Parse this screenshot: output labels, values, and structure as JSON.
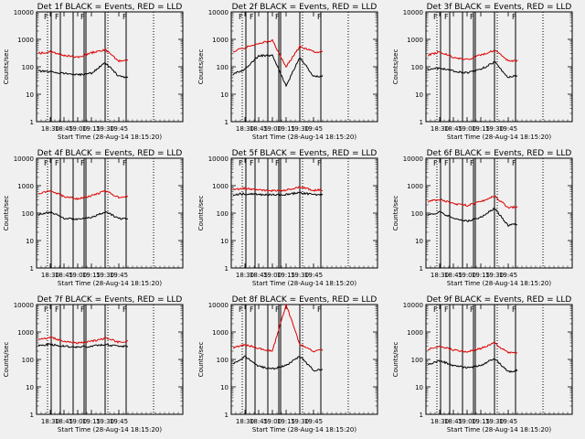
{
  "figure": {
    "background": "#f0f0f0",
    "event_color": "#000000",
    "lld_color": "#dd0000",
    "start_time_label": "Start Time (28-Aug-14 18:15:20)",
    "ylabel": "Counts/sec",
    "mark_label": "F"
  },
  "chart_data": [
    {
      "type": "line",
      "title": "Det 1f BLACK = Events, RED = LLD",
      "ylabel": "Counts/sec",
      "xlabel": "Start Time (28-Aug-14 18:15:20)",
      "yscale": "log",
      "ylim": [
        1,
        10000
      ],
      "xlim": [
        "18:15",
        "20:55"
      ],
      "x_ticks": [
        "18:30",
        "18:45",
        "19:00",
        "19:15",
        "19:30",
        "19:45"
      ],
      "y_ticks": [
        "1",
        "10",
        "100",
        "1000",
        "10000"
      ],
      "x": [
        "18:15",
        "18:30",
        "18:45",
        "19:00",
        "19:15",
        "19:30",
        "19:45",
        "19:55"
      ],
      "series": [
        {
          "name": "Events",
          "color": "#000000",
          "values": [
            70,
            65,
            58,
            50,
            58,
            140,
            45,
            40
          ]
        },
        {
          "name": "LLD",
          "color": "#dd0000",
          "values": [
            300,
            350,
            260,
            220,
            320,
            420,
            160,
            170
          ]
        }
      ]
    },
    {
      "type": "line",
      "title": "Det 2f BLACK = Events, RED = LLD",
      "ylabel": "Counts/sec",
      "xlabel": "Start Time (28-Aug-14 18:15:20)",
      "yscale": "log",
      "ylim": [
        1,
        10000
      ],
      "xlim": [
        "18:15",
        "20:55"
      ],
      "x_ticks": [
        "18:30",
        "18:45",
        "19:00",
        "19:15",
        "19:30",
        "19:45"
      ],
      "y_ticks": [
        "1",
        "10",
        "100",
        "1000",
        "10000"
      ],
      "x": [
        "18:15",
        "18:30",
        "18:45",
        "19:00",
        "19:15",
        "19:30",
        "19:45",
        "19:55"
      ],
      "series": [
        {
          "name": "Events",
          "color": "#000000",
          "values": [
            50,
            80,
            250,
            260,
            20,
            220,
            45,
            45
          ]
        },
        {
          "name": "LLD",
          "color": "#dd0000",
          "values": [
            350,
            500,
            700,
            900,
            100,
            550,
            350,
            350
          ]
        }
      ]
    },
    {
      "type": "line",
      "title": "Det 3f BLACK = Events, RED = LLD",
      "ylabel": "Counts/sec",
      "xlabel": "Start Time (28-Aug-14 18:15:20)",
      "yscale": "log",
      "ylim": [
        1,
        10000
      ],
      "xlim": [
        "18:15",
        "20:55"
      ],
      "x_ticks": [
        "18:30",
        "18:45",
        "19:00",
        "19:15",
        "19:30",
        "19:45"
      ],
      "y_ticks": [
        "1",
        "10",
        "100",
        "1000",
        "10000"
      ],
      "x": [
        "18:15",
        "18:30",
        "18:45",
        "19:00",
        "19:15",
        "19:30",
        "19:45",
        "19:55"
      ],
      "series": [
        {
          "name": "Events",
          "color": "#000000",
          "values": [
            80,
            90,
            70,
            60,
            80,
            150,
            40,
            50
          ]
        },
        {
          "name": "LLD",
          "color": "#dd0000",
          "values": [
            250,
            350,
            220,
            180,
            270,
            400,
            160,
            170
          ]
        }
      ]
    },
    {
      "type": "line",
      "title": "Det 4f BLACK = Events, RED = LLD",
      "ylabel": "Counts/sec",
      "xlabel": "Start Time (28-Aug-14 18:15:20)",
      "yscale": "log",
      "ylim": [
        1,
        10000
      ],
      "xlim": [
        "18:15",
        "20:55"
      ],
      "x_ticks": [
        "18:30",
        "18:45",
        "19:00",
        "19:15",
        "19:30",
        "19:45"
      ],
      "y_ticks": [
        "1",
        "10",
        "100",
        "1000",
        "10000"
      ],
      "x": [
        "18:15",
        "18:30",
        "18:45",
        "19:00",
        "19:15",
        "19:30",
        "19:45",
        "19:55"
      ],
      "series": [
        {
          "name": "Events",
          "color": "#000000",
          "values": [
            80,
            110,
            65,
            60,
            70,
            110,
            65,
            60
          ]
        },
        {
          "name": "LLD",
          "color": "#dd0000",
          "values": [
            500,
            650,
            400,
            330,
            420,
            650,
            380,
            400
          ]
        }
      ]
    },
    {
      "type": "line",
      "title": "Det 5f BLACK = Events, RED = LLD",
      "ylabel": "Counts/sec",
      "xlabel": "Start Time (28-Aug-14 18:15:20)",
      "yscale": "log",
      "ylim": [
        1,
        10000
      ],
      "xlim": [
        "18:15",
        "20:55"
      ],
      "x_ticks": [
        "18:30",
        "18:45",
        "19:00",
        "19:15",
        "19:30",
        "19:45"
      ],
      "y_ticks": [
        "1",
        "10",
        "100",
        "1000",
        "10000"
      ],
      "x": [
        "18:15",
        "18:30",
        "18:45",
        "19:00",
        "19:15",
        "19:30",
        "19:45",
        "19:55"
      ],
      "series": [
        {
          "name": "Events",
          "color": "#000000",
          "values": [
            480,
            500,
            480,
            460,
            470,
            560,
            470,
            480
          ]
        },
        {
          "name": "LLD",
          "color": "#dd0000",
          "values": [
            700,
            800,
            700,
            650,
            680,
            900,
            680,
            700
          ]
        }
      ]
    },
    {
      "type": "line",
      "title": "Det 6f BLACK = Events, RED = LLD",
      "ylabel": "Counts/sec",
      "xlabel": "Start Time (28-Aug-14 18:15:20)",
      "yscale": "log",
      "ylim": [
        1,
        10000
      ],
      "xlim": [
        "18:15",
        "20:55"
      ],
      "x_ticks": [
        "18:30",
        "18:45",
        "19:00",
        "19:15",
        "19:30",
        "19:45"
      ],
      "y_ticks": [
        "1",
        "10",
        "100",
        "1000",
        "10000"
      ],
      "x": [
        "18:15",
        "18:30",
        "18:45",
        "19:00",
        "19:15",
        "19:30",
        "19:45",
        "19:55"
      ],
      "series": [
        {
          "name": "Events",
          "color": "#000000",
          "values": [
            80,
            110,
            65,
            50,
            70,
            150,
            35,
            40
          ]
        },
        {
          "name": "LLD",
          "color": "#dd0000",
          "values": [
            250,
            320,
            220,
            190,
            260,
            420,
            160,
            170
          ]
        }
      ]
    },
    {
      "type": "line",
      "title": "Det 7f BLACK = Events, RED = LLD",
      "ylabel": "Counts/sec",
      "xlabel": "Start Time (28-Aug-14 18:15:20)",
      "yscale": "log",
      "ylim": [
        1,
        10000
      ],
      "xlim": [
        "18:15",
        "20:55"
      ],
      "x_ticks": [
        "18:30",
        "18:45",
        "19:00",
        "19:15",
        "19:30",
        "19:45"
      ],
      "y_ticks": [
        "1",
        "10",
        "100",
        "1000",
        "10000"
      ],
      "x": [
        "18:15",
        "18:30",
        "18:45",
        "19:00",
        "19:15",
        "19:30",
        "19:45",
        "19:55"
      ],
      "series": [
        {
          "name": "Events",
          "color": "#000000",
          "values": [
            320,
            350,
            300,
            280,
            300,
            360,
            290,
            300
          ]
        },
        {
          "name": "LLD",
          "color": "#dd0000",
          "values": [
            500,
            650,
            450,
            400,
            450,
            600,
            430,
            450
          ]
        }
      ]
    },
    {
      "type": "line",
      "title": "Det 8f BLACK = Events, RED = LLD",
      "ylabel": "Counts/sec",
      "xlabel": "Start Time (28-Aug-14 18:15:20)",
      "yscale": "log",
      "ylim": [
        1,
        10000
      ],
      "xlim": [
        "18:15",
        "20:55"
      ],
      "x_ticks": [
        "18:30",
        "18:45",
        "19:00",
        "19:15",
        "19:30",
        "19:45"
      ],
      "y_ticks": [
        "1",
        "10",
        "100",
        "1000",
        "10000"
      ],
      "x": [
        "18:15",
        "18:30",
        "18:45",
        "19:00",
        "19:15",
        "19:30",
        "19:45",
        "19:55"
      ],
      "series": [
        {
          "name": "Events",
          "color": "#000000",
          "values": [
            60,
            130,
            55,
            45,
            60,
            130,
            40,
            45
          ]
        },
        {
          "name": "LLD",
          "color": "#dd0000",
          "values": [
            250,
            350,
            250,
            200,
            10000,
            350,
            200,
            220
          ]
        }
      ]
    },
    {
      "type": "line",
      "title": "Det 9f BLACK = Events, RED = LLD",
      "ylabel": "Counts/sec",
      "xlabel": "Start Time (28-Aug-14 18:15:20)",
      "yscale": "log",
      "ylim": [
        1,
        10000
      ],
      "xlim": [
        "18:15",
        "20:55"
      ],
      "x_ticks": [
        "18:30",
        "18:45",
        "19:00",
        "19:15",
        "19:30",
        "19:45"
      ],
      "y_ticks": [
        "1",
        "10",
        "100",
        "1000",
        "10000"
      ],
      "x": [
        "18:15",
        "18:30",
        "18:45",
        "19:00",
        "19:15",
        "19:30",
        "19:45",
        "19:55"
      ],
      "series": [
        {
          "name": "Events",
          "color": "#000000",
          "values": [
            60,
            90,
            60,
            50,
            60,
            110,
            35,
            40
          ]
        },
        {
          "name": "LLD",
          "color": "#dd0000",
          "values": [
            220,
            300,
            220,
            190,
            250,
            400,
            170,
            180
          ]
        }
      ]
    }
  ]
}
